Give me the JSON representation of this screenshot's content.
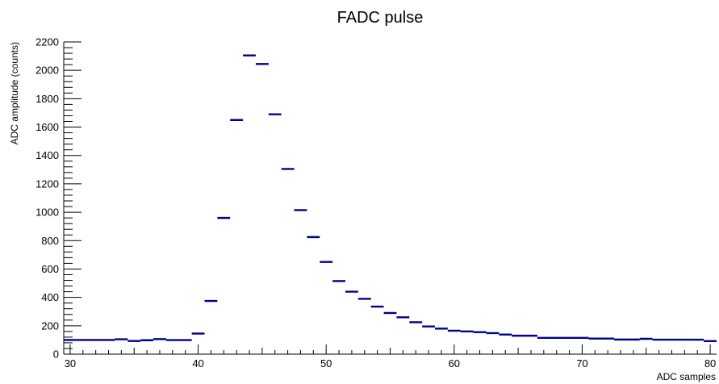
{
  "chart_data": {
    "type": "histogram",
    "title": "FADC pulse",
    "xlabel": "ADC samples",
    "ylabel": "ADC amplitude (counts)",
    "xlim": [
      29.5,
      80.5
    ],
    "ylim": [
      0,
      2200
    ],
    "x_major_ticks": [
      30,
      40,
      50,
      60,
      70,
      80
    ],
    "y_major_ticks": [
      0,
      200,
      400,
      600,
      800,
      1000,
      1200,
      1400,
      1600,
      1800,
      2000,
      2200
    ],
    "line_color": "#00008b",
    "bins": [
      {
        "x0": 29.5,
        "x1": 33.5,
        "y": 100
      },
      {
        "x0": 33.5,
        "x1": 34.5,
        "y": 105
      },
      {
        "x0": 34.5,
        "x1": 35.5,
        "y": 93
      },
      {
        "x0": 35.5,
        "x1": 36.5,
        "y": 98
      },
      {
        "x0": 36.5,
        "x1": 37.5,
        "y": 106
      },
      {
        "x0": 37.5,
        "x1": 39.5,
        "y": 99
      },
      {
        "x0": 39.5,
        "x1": 40.5,
        "y": 145
      },
      {
        "x0": 40.5,
        "x1": 41.5,
        "y": 375
      },
      {
        "x0": 41.5,
        "x1": 42.5,
        "y": 960
      },
      {
        "x0": 42.5,
        "x1": 43.5,
        "y": 1650
      },
      {
        "x0": 43.5,
        "x1": 44.5,
        "y": 2105
      },
      {
        "x0": 44.5,
        "x1": 45.5,
        "y": 2045
      },
      {
        "x0": 45.5,
        "x1": 46.5,
        "y": 1690
      },
      {
        "x0": 46.5,
        "x1": 47.5,
        "y": 1305
      },
      {
        "x0": 47.5,
        "x1": 48.5,
        "y": 1015
      },
      {
        "x0": 48.5,
        "x1": 49.5,
        "y": 825
      },
      {
        "x0": 49.5,
        "x1": 50.5,
        "y": 650
      },
      {
        "x0": 50.5,
        "x1": 51.5,
        "y": 515
      },
      {
        "x0": 51.5,
        "x1": 52.5,
        "y": 440
      },
      {
        "x0": 52.5,
        "x1": 53.5,
        "y": 390
      },
      {
        "x0": 53.5,
        "x1": 54.5,
        "y": 335
      },
      {
        "x0": 54.5,
        "x1": 55.5,
        "y": 290
      },
      {
        "x0": 55.5,
        "x1": 56.5,
        "y": 260
      },
      {
        "x0": 56.5,
        "x1": 57.5,
        "y": 225
      },
      {
        "x0": 57.5,
        "x1": 58.5,
        "y": 195
      },
      {
        "x0": 58.5,
        "x1": 59.5,
        "y": 180
      },
      {
        "x0": 59.5,
        "x1": 60.5,
        "y": 165
      },
      {
        "x0": 60.5,
        "x1": 61.5,
        "y": 160
      },
      {
        "x0": 61.5,
        "x1": 62.5,
        "y": 155
      },
      {
        "x0": 62.5,
        "x1": 63.5,
        "y": 148
      },
      {
        "x0": 63.5,
        "x1": 64.5,
        "y": 138
      },
      {
        "x0": 64.5,
        "x1": 66.5,
        "y": 130
      },
      {
        "x0": 66.5,
        "x1": 70.5,
        "y": 115
      },
      {
        "x0": 70.5,
        "x1": 72.5,
        "y": 110
      },
      {
        "x0": 72.5,
        "x1": 74.5,
        "y": 103
      },
      {
        "x0": 74.5,
        "x1": 75.5,
        "y": 108
      },
      {
        "x0": 75.5,
        "x1": 79.5,
        "y": 102
      },
      {
        "x0": 79.5,
        "x1": 80.5,
        "y": 92
      }
    ]
  }
}
